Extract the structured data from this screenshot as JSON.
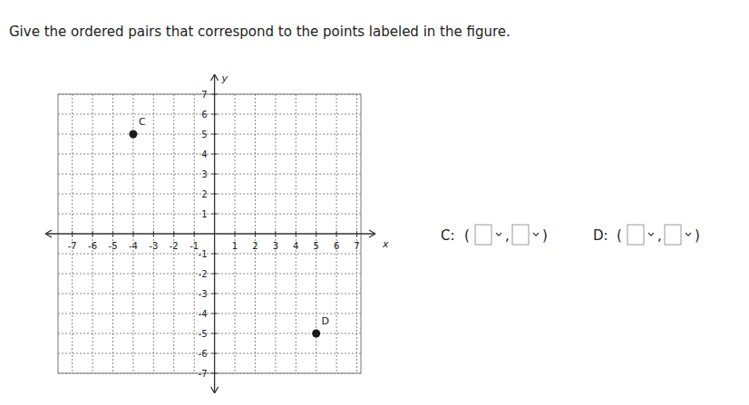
{
  "question": "Give the ordered pairs that correspond to the points labeled in the figure.",
  "answers": [
    {
      "label": "C:"
    },
    {
      "label": "D:"
    }
  ],
  "open": "(",
  "separator": ",",
  "close": ")",
  "chart_data": {
    "type": "scatter",
    "x": [
      -4,
      5
    ],
    "values": [
      5,
      -5
    ],
    "point_labels": [
      "C",
      "D"
    ],
    "color": "#1a1a1a",
    "marker": "circle",
    "x_label": "x",
    "y_label": "y",
    "xlim": [
      -7.7,
      7.2
    ],
    "ylim": [
      -7,
      7
    ],
    "xticks": [
      -7,
      -6,
      -5,
      -4,
      -3,
      -2,
      -1,
      1,
      2,
      3,
      4,
      5,
      6,
      7
    ],
    "yticks": [
      -7,
      -6,
      -5,
      -4,
      -3,
      -2,
      -1,
      1,
      2,
      3,
      4,
      5,
      6,
      7
    ],
    "grid": true
  }
}
